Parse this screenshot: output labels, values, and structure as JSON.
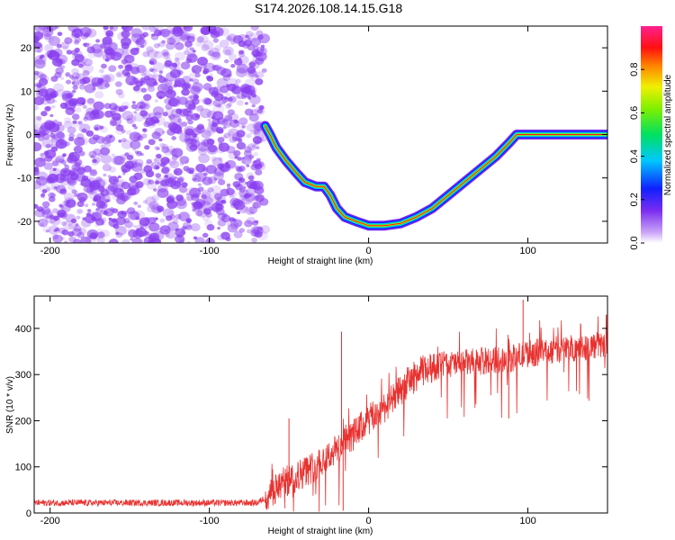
{
  "title": "S174.2026.108.14.15.G18",
  "colors": {
    "snr_line": "#e8312f",
    "noise": "#8a3ff0",
    "frame": "#000000"
  },
  "chart_data": [
    {
      "type": "heatmap",
      "xlabel": "Height of straight line (km)",
      "ylabel": "Frequency (Hz)",
      "xlim": [
        -210,
        150
      ],
      "ylim": [
        -25,
        25
      ],
      "xticks": [
        -200,
        -100,
        0,
        100
      ],
      "yticks": [
        -20,
        -10,
        0,
        10,
        20
      ],
      "colorbar": {
        "label": "Normalized spectral amplitude",
        "range": [
          0,
          1
        ],
        "ticks": [
          0.0,
          0.2,
          0.4,
          0.6,
          0.8
        ]
      },
      "noise_region_x": [
        -210,
        -65
      ],
      "ridge": [
        [
          -65,
          2
        ],
        [
          -62,
          0
        ],
        [
          -58,
          -3
        ],
        [
          -52,
          -6
        ],
        [
          -45,
          -9
        ],
        [
          -40,
          -11
        ],
        [
          -33,
          -12
        ],
        [
          -28,
          -12
        ],
        [
          -24,
          -14
        ],
        [
          -20,
          -17
        ],
        [
          -15,
          -19
        ],
        [
          -8,
          -20
        ],
        [
          0,
          -21
        ],
        [
          10,
          -21
        ],
        [
          20,
          -20.5
        ],
        [
          30,
          -19
        ],
        [
          40,
          -17
        ],
        [
          50,
          -14
        ],
        [
          60,
          -11
        ],
        [
          70,
          -8
        ],
        [
          80,
          -5
        ],
        [
          88,
          -2
        ],
        [
          93,
          0
        ],
        [
          100,
          0
        ],
        [
          150,
          0
        ]
      ]
    },
    {
      "type": "line",
      "xlabel": "Height of straight line (km)",
      "ylabel": "SNR (10 * v/v)",
      "xlim": [
        -210,
        150
      ],
      "ylim": [
        0,
        470
      ],
      "xticks": [
        -200,
        -100,
        0,
        100
      ],
      "yticks": [
        0,
        100,
        200,
        300,
        400
      ],
      "trend": [
        [
          -210,
          22
        ],
        [
          -150,
          22
        ],
        [
          -100,
          22
        ],
        [
          -70,
          22
        ],
        [
          -62,
          40
        ],
        [
          -55,
          62
        ],
        [
          -45,
          80
        ],
        [
          -35,
          100
        ],
        [
          -25,
          125
        ],
        [
          -15,
          150
        ],
        [
          -5,
          185
        ],
        [
          5,
          215
        ],
        [
          15,
          245
        ],
        [
          25,
          285
        ],
        [
          35,
          310
        ],
        [
          45,
          320
        ],
        [
          60,
          325
        ],
        [
          75,
          330
        ],
        [
          90,
          335
        ],
        [
          100,
          345
        ],
        [
          120,
          355
        ],
        [
          135,
          360
        ],
        [
          150,
          365
        ]
      ],
      "spikes": [
        [
          -50,
          205
        ],
        [
          -17,
          393
        ],
        [
          -16,
          5
        ],
        [
          97,
          462
        ],
        [
          88,
          205
        ]
      ]
    }
  ]
}
